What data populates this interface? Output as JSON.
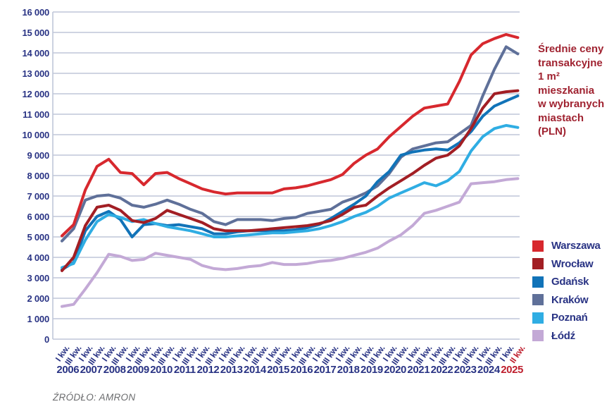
{
  "title": {
    "lines": [
      "Średnie ceny",
      "transakcyjne",
      "1 m² mieszkania",
      "w wybranych",
      "miastach",
      "(PLN)"
    ]
  },
  "source": "ŹRÓDŁO: AMRON",
  "colors": {
    "axis_text": "#293384",
    "highlight_text": "#be1e2d",
    "gridline": "#bfc6d9",
    "title_text": "#a02331",
    "source_text": "#6b6c6e"
  },
  "chart_data": {
    "type": "line",
    "title": "Średnie ceny transakcyjne 1 m² mieszkania w wybranych miastach (PLN)",
    "ylabel": "PLN",
    "ylim": [
      0,
      16000
    ],
    "ytick_step": 1000,
    "grid": true,
    "legend_position": "right",
    "x_tick_labels": [
      "I kw.",
      "III kw.",
      "I kw.",
      "III kw.",
      "I kw.",
      "III kw.",
      "I kw.",
      "III kw.",
      "I kw.",
      "III kw.",
      "I kw.",
      "III kw.",
      "I kw.",
      "III kw.",
      "I kw.",
      "III kw.",
      "I kw.",
      "III kw.",
      "I kw.",
      "III kw.",
      "I kw.",
      "III kw.",
      "I kw.",
      "III kw.",
      "I kw.",
      "III kw.",
      "I kw.",
      "III kw.",
      "I kw.",
      "III kw.",
      "I kw.",
      "III kw.",
      "I kw.",
      "III kw.",
      "I kw.",
      "III kw.",
      "I kw.",
      "III kw.",
      "I kw.",
      "II kw."
    ],
    "highlight_last_tick": true,
    "years": [
      "2006",
      "2007",
      "2008",
      "2009",
      "2010",
      "2011",
      "2012",
      "2013",
      "2014",
      "2015",
      "2016",
      "2017",
      "2018",
      "2019",
      "2020",
      "2021",
      "2022",
      "2023",
      "2024",
      "2025"
    ],
    "highlight_year": "2025",
    "series": [
      {
        "name": "Warszawa",
        "color": "#d7282e",
        "values": [
          5050,
          5600,
          7300,
          8450,
          8800,
          8150,
          8100,
          7550,
          8100,
          8150,
          7850,
          7600,
          7350,
          7200,
          7100,
          7150,
          7150,
          7150,
          7150,
          7350,
          7400,
          7500,
          7650,
          7800,
          8050,
          8600,
          9000,
          9300,
          9900,
          10400,
          10900,
          11300,
          11400,
          11500,
          12600,
          13900,
          14450,
          14700,
          14900,
          14750
        ]
      },
      {
        "name": "Wrocław",
        "color": "#a21e24",
        "values": [
          3350,
          4000,
          5550,
          6450,
          6550,
          6300,
          5800,
          5700,
          5900,
          6300,
          6100,
          5900,
          5700,
          5400,
          5300,
          5300,
          5300,
          5350,
          5400,
          5450,
          5500,
          5550,
          5650,
          5800,
          6100,
          6450,
          6550,
          7000,
          7400,
          7750,
          8100,
          8500,
          8850,
          9000,
          9450,
          10300,
          11300,
          12000,
          12100,
          12150
        ]
      },
      {
        "name": "Gdańsk",
        "color": "#1173b8",
        "values": [
          3400,
          3750,
          5300,
          6000,
          6250,
          5850,
          5000,
          5600,
          5650,
          5550,
          5600,
          5500,
          5400,
          5150,
          5150,
          5250,
          5300,
          5300,
          5300,
          5300,
          5350,
          5450,
          5600,
          5900,
          6250,
          6600,
          7000,
          7700,
          8200,
          9000,
          9150,
          9250,
          9300,
          9250,
          9600,
          10150,
          10900,
          11400,
          11650,
          11900
        ]
      },
      {
        "name": "Kraków",
        "color": "#5f7099",
        "values": [
          4800,
          5400,
          6800,
          7000,
          7050,
          6900,
          6550,
          6450,
          6600,
          6800,
          6600,
          6350,
          6150,
          5750,
          5600,
          5850,
          5850,
          5850,
          5800,
          5900,
          5950,
          6150,
          6250,
          6350,
          6700,
          6900,
          7150,
          7500,
          8100,
          8900,
          9300,
          9450,
          9600,
          9650,
          10050,
          10450,
          11900,
          13200,
          14300,
          13950
        ]
      },
      {
        "name": "Poznań",
        "color": "#2fade3",
        "values": [
          3500,
          3700,
          4850,
          5750,
          6100,
          5950,
          5750,
          5850,
          5650,
          5500,
          5400,
          5300,
          5150,
          5000,
          5000,
          5050,
          5100,
          5150,
          5200,
          5200,
          5250,
          5300,
          5400,
          5550,
          5750,
          6000,
          6200,
          6500,
          6900,
          7150,
          7400,
          7650,
          7500,
          7750,
          8200,
          9200,
          9900,
          10300,
          10450,
          10350
        ]
      },
      {
        "name": "Łódź",
        "color": "#c3a9d6",
        "values": [
          1600,
          1700,
          2450,
          3250,
          4150,
          4050,
          3850,
          3900,
          4200,
          4100,
          4000,
          3900,
          3600,
          3450,
          3400,
          3450,
          3550,
          3600,
          3750,
          3650,
          3650,
          3700,
          3800,
          3850,
          3950,
          4100,
          4250,
          4450,
          4800,
          5100,
          5550,
          6150,
          6300,
          6500,
          6700,
          7600,
          7650,
          7700,
          7800,
          7850
        ]
      }
    ]
  }
}
